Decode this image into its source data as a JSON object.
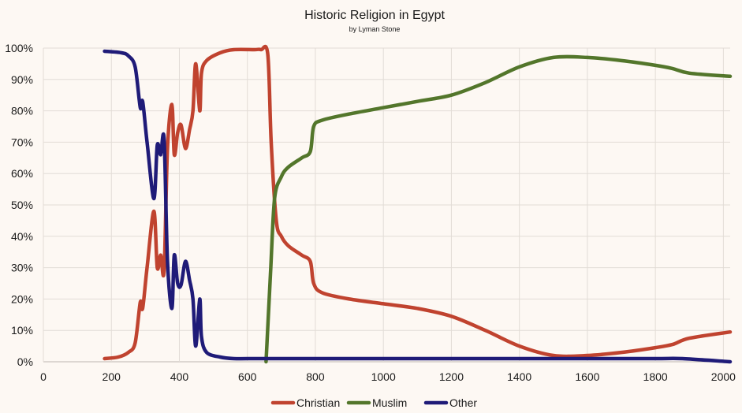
{
  "chart_data": {
    "type": "line",
    "title": "Historic Religion in Egypt",
    "subtitle": "by Lyman Stone",
    "xlabel": "",
    "ylabel": "",
    "xlim": [
      0,
      2020
    ],
    "ylim": [
      0,
      100
    ],
    "x_ticks": [
      0,
      200,
      400,
      600,
      800,
      1000,
      1200,
      1400,
      1600,
      1800,
      2000
    ],
    "y_ticks": [
      0,
      10,
      20,
      30,
      40,
      50,
      60,
      70,
      80,
      90,
      100
    ],
    "y_tick_labels": [
      "0%",
      "10%",
      "20%",
      "30%",
      "40%",
      "50%",
      "60%",
      "70%",
      "80%",
      "90%",
      "100%"
    ],
    "grid": true,
    "legend": "bottom",
    "series": [
      {
        "name": "Christian",
        "color": "#c0432f",
        "points": [
          [
            180,
            1
          ],
          [
            220,
            1.5
          ],
          [
            250,
            3
          ],
          [
            270,
            6
          ],
          [
            285,
            19
          ],
          [
            292,
            17
          ],
          [
            305,
            30
          ],
          [
            325,
            48
          ],
          [
            335,
            30
          ],
          [
            345,
            34
          ],
          [
            355,
            29
          ],
          [
            365,
            68
          ],
          [
            378,
            82
          ],
          [
            385,
            66
          ],
          [
            395,
            73
          ],
          [
            405,
            75.5
          ],
          [
            418,
            68
          ],
          [
            430,
            74
          ],
          [
            440,
            80
          ],
          [
            448,
            95
          ],
          [
            460,
            80
          ],
          [
            465,
            92
          ],
          [
            480,
            96
          ],
          [
            520,
            98.5
          ],
          [
            560,
            99.5
          ],
          [
            620,
            99.5
          ],
          [
            640,
            99.5
          ],
          [
            660,
            98
          ],
          [
            670,
            70
          ],
          [
            685,
            45
          ],
          [
            700,
            40
          ],
          [
            720,
            37
          ],
          [
            760,
            34
          ],
          [
            785,
            32
          ],
          [
            795,
            25
          ],
          [
            820,
            22
          ],
          [
            900,
            20
          ],
          [
            1000,
            18.5
          ],
          [
            1100,
            17
          ],
          [
            1200,
            14.5
          ],
          [
            1300,
            10
          ],
          [
            1400,
            5
          ],
          [
            1500,
            2
          ],
          [
            1600,
            2
          ],
          [
            1700,
            3
          ],
          [
            1800,
            4.5
          ],
          [
            1850,
            5.5
          ],
          [
            1900,
            7.5
          ],
          [
            2020,
            9.5
          ]
        ]
      },
      {
        "name": "Muslim",
        "color": "#53762b",
        "points": [
          [
            655,
            0
          ],
          [
            668,
            28
          ],
          [
            680,
            52
          ],
          [
            700,
            59
          ],
          [
            720,
            62
          ],
          [
            760,
            65
          ],
          [
            785,
            67
          ],
          [
            795,
            75
          ],
          [
            820,
            77
          ],
          [
            900,
            79
          ],
          [
            1000,
            81
          ],
          [
            1100,
            83
          ],
          [
            1200,
            85
          ],
          [
            1300,
            89
          ],
          [
            1400,
            94
          ],
          [
            1500,
            97
          ],
          [
            1600,
            97
          ],
          [
            1700,
            96
          ],
          [
            1800,
            94.5
          ],
          [
            1850,
            93.5
          ],
          [
            1900,
            92
          ],
          [
            2020,
            91
          ]
        ]
      },
      {
        "name": "Other",
        "color": "#1f1b78",
        "points": [
          [
            180,
            99
          ],
          [
            230,
            98.5
          ],
          [
            250,
            97.5
          ],
          [
            270,
            94
          ],
          [
            285,
            81
          ],
          [
            292,
            83
          ],
          [
            305,
            70
          ],
          [
            325,
            52
          ],
          [
            335,
            69
          ],
          [
            345,
            66
          ],
          [
            355,
            71
          ],
          [
            365,
            32
          ],
          [
            378,
            17
          ],
          [
            385,
            34
          ],
          [
            395,
            25
          ],
          [
            405,
            24.5
          ],
          [
            418,
            32
          ],
          [
            430,
            26
          ],
          [
            440,
            20
          ],
          [
            448,
            5
          ],
          [
            460,
            20
          ],
          [
            465,
            8
          ],
          [
            480,
            3
          ],
          [
            520,
            1.5
          ],
          [
            560,
            1
          ],
          [
            620,
            1
          ],
          [
            660,
            1
          ],
          [
            700,
            1
          ],
          [
            900,
            1
          ],
          [
            1000,
            1
          ],
          [
            1200,
            1
          ],
          [
            1400,
            1
          ],
          [
            1600,
            1
          ],
          [
            1800,
            1
          ],
          [
            1880,
            1
          ],
          [
            2020,
            0
          ]
        ]
      }
    ]
  }
}
